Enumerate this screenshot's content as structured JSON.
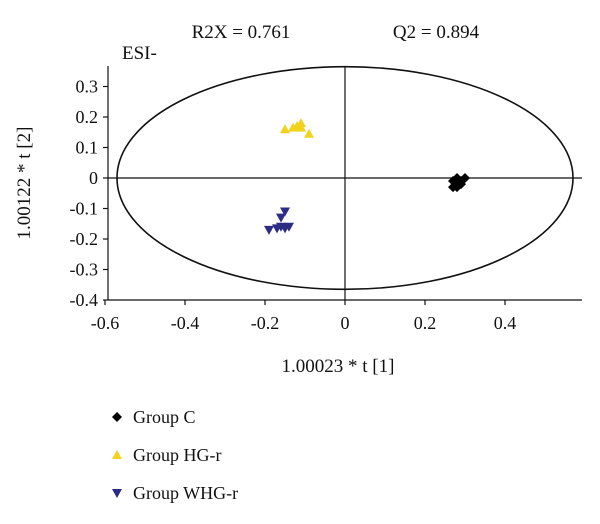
{
  "chart_data": {
    "type": "scatter",
    "title": "",
    "stat_left": "R2X = 0.761",
    "stat_right": "Q2 = 0.894",
    "mode_label": "ESI-",
    "xlabel": "1.00023 * t [1]",
    "ylabel": "1.00122 * t [2]",
    "xlim": [
      -0.6,
      0.6
    ],
    "ylim": [
      -0.4,
      0.37
    ],
    "x_ticks": [
      -0.6,
      -0.4,
      -0.2,
      0,
      0.2,
      0.4
    ],
    "x_tick_labels": [
      "-0.6",
      "-0.4",
      "-0.2",
      "0",
      "0.2",
      "0.4"
    ],
    "y_ticks": [
      -0.4,
      -0.3,
      -0.2,
      -0.1,
      0,
      0.1,
      0.2,
      0.3
    ],
    "y_tick_labels": [
      "-0.4",
      "-0.3",
      "-0.2",
      "-0.1",
      "0",
      "0.1",
      "0.2",
      "0.3"
    ],
    "grid": false,
    "legend_position": "bottom-left",
    "ellipse": {
      "cx": 0,
      "cy": 0,
      "rx": 0.57,
      "ry": 0.365
    },
    "series": [
      {
        "name": "Group C",
        "marker": "diamond",
        "color": "#000000",
        "points": [
          [
            0.27,
            -0.01
          ],
          [
            0.28,
            0.0
          ],
          [
            0.29,
            -0.01
          ],
          [
            0.3,
            0.0
          ],
          [
            0.28,
            -0.02
          ],
          [
            0.27,
            -0.03
          ],
          [
            0.29,
            -0.02
          ],
          [
            0.28,
            -0.03
          ]
        ]
      },
      {
        "name": "Group HG-r",
        "marker": "triangle-up",
        "color": "#f1d31e",
        "points": [
          [
            -0.15,
            0.16
          ],
          [
            -0.12,
            0.17
          ],
          [
            -0.11,
            0.18
          ],
          [
            -0.11,
            0.165
          ],
          [
            -0.09,
            0.145
          ],
          [
            -0.13,
            0.165
          ]
        ]
      },
      {
        "name": "Group WHG-r",
        "marker": "triangle-down",
        "color": "#2c2c85",
        "points": [
          [
            -0.19,
            -0.17
          ],
          [
            -0.17,
            -0.165
          ],
          [
            -0.16,
            -0.16
          ],
          [
            -0.15,
            -0.165
          ],
          [
            -0.14,
            -0.16
          ],
          [
            -0.15,
            -0.11
          ],
          [
            -0.16,
            -0.13
          ]
        ]
      }
    ]
  }
}
